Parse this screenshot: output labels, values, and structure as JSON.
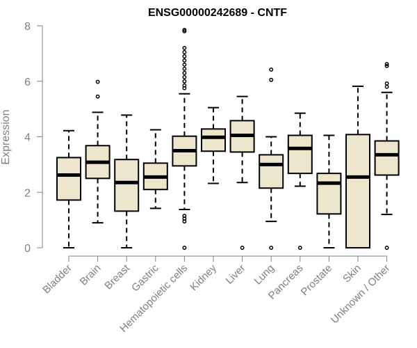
{
  "chart_data": {
    "type": "boxplot",
    "title": "ENSG00000242689 - CNTF",
    "ylabel": "Expression",
    "xlabel": "",
    "ylim": [
      0,
      8
    ],
    "yticks": [
      0,
      2,
      4,
      6,
      8
    ],
    "box_color": "#ede5cc",
    "categories": [
      "Bladder",
      "Brain",
      "Breast",
      "Gastric",
      "Hematopoietic cells",
      "Kidney",
      "Liver",
      "Lung",
      "Pancreas",
      "Prostate",
      "Skin",
      "Unknown / Other"
    ],
    "boxes": [
      {
        "name": "Bladder",
        "whisker_low": 0.0,
        "q1": 1.72,
        "median": 2.62,
        "q3": 3.25,
        "whisker_high": 4.22,
        "outliers": []
      },
      {
        "name": "Brain",
        "whisker_low": 0.9,
        "q1": 2.5,
        "median": 3.08,
        "q3": 3.68,
        "whisker_high": 4.88,
        "outliers": [
          5.45,
          5.98
        ]
      },
      {
        "name": "Breast",
        "whisker_low": 0.0,
        "q1": 1.32,
        "median": 2.35,
        "q3": 3.18,
        "whisker_high": 4.78,
        "outliers": []
      },
      {
        "name": "Gastric",
        "whisker_low": 1.42,
        "q1": 2.1,
        "median": 2.55,
        "q3": 3.05,
        "whisker_high": 4.25,
        "outliers": []
      },
      {
        "name": "Hematopoietic cells",
        "whisker_low": 1.38,
        "q1": 2.95,
        "median": 3.5,
        "q3": 4.02,
        "whisker_high": 5.55,
        "outliers": [
          0.0,
          0.95,
          1.05,
          1.15,
          5.75,
          5.85,
          6.0,
          6.15,
          6.3,
          6.45,
          6.6,
          6.75,
          6.9,
          7.05,
          7.2,
          7.8,
          7.85
        ]
      },
      {
        "name": "Kidney",
        "whisker_low": 2.32,
        "q1": 3.48,
        "median": 3.98,
        "q3": 4.28,
        "whisker_high": 5.05,
        "outliers": []
      },
      {
        "name": "Liver",
        "whisker_low": 2.35,
        "q1": 3.45,
        "median": 4.05,
        "q3": 4.58,
        "whisker_high": 5.45,
        "outliers": [
          0.0
        ]
      },
      {
        "name": "Lung",
        "whisker_low": 0.95,
        "q1": 2.15,
        "median": 3.0,
        "q3": 3.35,
        "whisker_high": 4.0,
        "outliers": [
          0.0,
          6.05,
          6.42
        ]
      },
      {
        "name": "Pancreas",
        "whisker_low": 2.22,
        "q1": 2.68,
        "median": 3.58,
        "q3": 4.05,
        "whisker_high": 4.85,
        "outliers": [
          0.0
        ]
      },
      {
        "name": "Prostate",
        "whisker_low": 0.0,
        "q1": 1.22,
        "median": 2.33,
        "q3": 2.68,
        "whisker_high": 4.05,
        "outliers": []
      },
      {
        "name": "Skin",
        "whisker_low": 0.0,
        "q1": 0.0,
        "median": 2.55,
        "q3": 4.08,
        "whisker_high": 5.82,
        "outliers": []
      },
      {
        "name": "Unknown / Other",
        "whisker_low": 1.2,
        "q1": 2.62,
        "median": 3.35,
        "q3": 3.85,
        "whisker_high": 5.6,
        "outliers": [
          0.0,
          5.8,
          5.92,
          6.55,
          6.62
        ]
      }
    ]
  }
}
